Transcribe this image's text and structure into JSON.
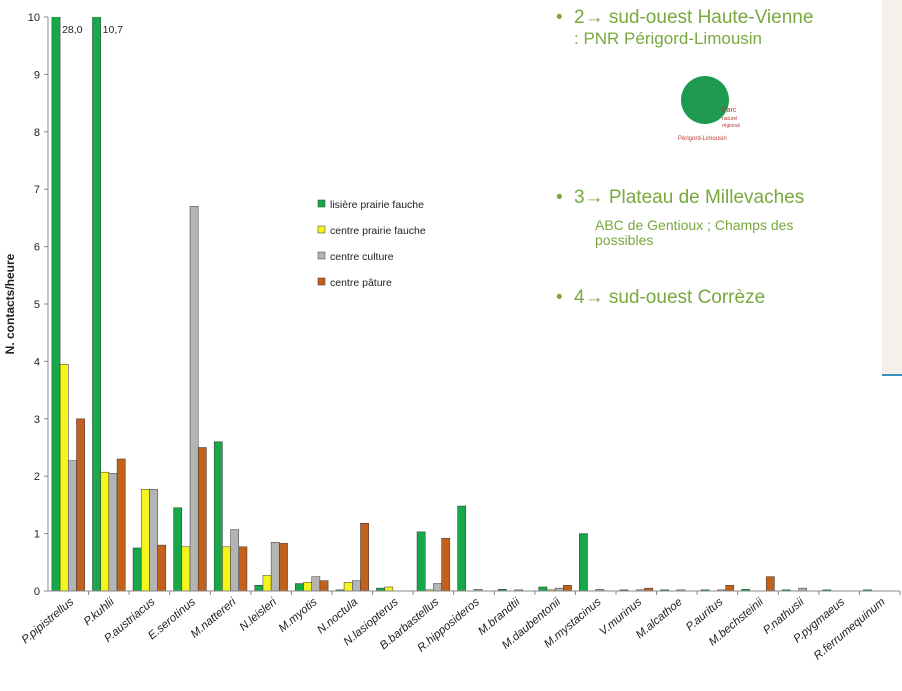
{
  "chart_data": {
    "type": "bar",
    "y_label": "N. contacts/heure",
    "categories": [
      "P.pipistrellus",
      "P.kuhlii",
      "P.austriacus",
      "E.serotinus",
      "M.nattereri",
      "N.leisleri",
      "M.myotis",
      "N.noctula",
      "N.lasiopterus",
      "B.barbastellus",
      "R.hipposideros",
      "M.brandtii",
      "M.daubentonii",
      "M.mystacinus",
      "V.murinus",
      "M.alcathoe",
      "P.auritus",
      "M.bechsteinii",
      "P.nathusii",
      "P.pygmaeus",
      "R.ferrumequinum"
    ],
    "series": [
      {
        "name": "lisière prairie fauche",
        "color": "#17a84a",
        "values": [
          28.0,
          10.7,
          0.75,
          1.45,
          2.6,
          0.1,
          0.13,
          0.02,
          0.05,
          1.03,
          1.48,
          0.03,
          0.07,
          1.0,
          0.02,
          0.02,
          0.02,
          0.03,
          0.02,
          0.02,
          0.02
        ],
        "value_labels": [
          "28,0",
          "10,7",
          null,
          null,
          null,
          null,
          null,
          null,
          null,
          null,
          null,
          null,
          null,
          null,
          null,
          null,
          null,
          null,
          null,
          null,
          null
        ]
      },
      {
        "name": "centre prairie fauche",
        "color": "#f5f51e",
        "values": [
          3.95,
          2.07,
          1.77,
          0.77,
          0.77,
          0.27,
          0.15,
          0.15,
          0.07,
          0.02,
          0,
          0,
          0.02,
          0,
          0,
          0,
          0,
          0,
          0,
          0,
          0
        ]
      },
      {
        "name": "centre culture",
        "color": "#b4b4b4",
        "values": [
          2.27,
          2.05,
          1.77,
          6.7,
          1.07,
          0.85,
          0.25,
          0.18,
          0,
          0.13,
          0.03,
          0.02,
          0.05,
          0.03,
          0.02,
          0.02,
          0.02,
          0,
          0.05,
          0,
          0
        ]
      },
      {
        "name": "centre pâture",
        "color": "#c2611c",
        "values": [
          3.0,
          2.3,
          0.8,
          2.5,
          0.77,
          0.83,
          0.18,
          1.18,
          0,
          0.92,
          0,
          0,
          0.1,
          0,
          0.05,
          0,
          0.1,
          0.25,
          0,
          0,
          0
        ]
      }
    ],
    "ylim": [
      0,
      10
    ],
    "yticks": [
      0,
      1,
      2,
      3,
      4,
      5,
      6,
      7,
      8,
      9,
      10
    ],
    "grid": false,
    "legend": "center"
  },
  "slide": {
    "items": [
      {
        "lines": [
          "2→ sud-ouest Haute-Vienne",
          ": PNR Périgord-Limousin"
        ]
      },
      {
        "lines": [
          "3→ Plateau de Millevaches"
        ],
        "sub": "ABC de Gentioux ; Champs des possibles"
      },
      {
        "lines": [
          "4→ sud-ouest Corrèze"
        ]
      }
    ],
    "logo": [
      "Parc",
      "naturel",
      "régional",
      "Périgord-Limousin"
    ]
  }
}
